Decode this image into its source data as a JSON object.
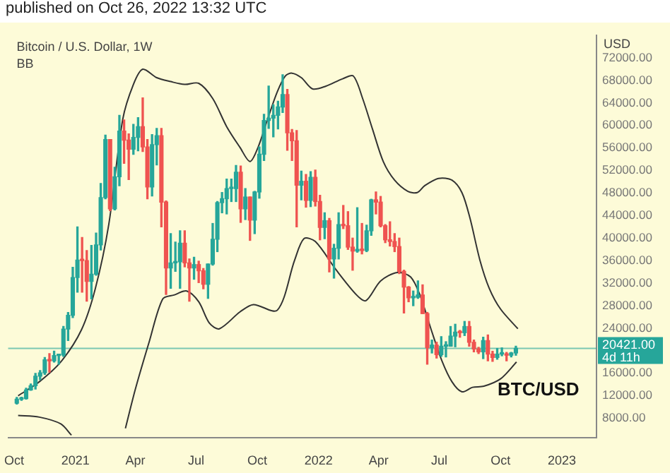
{
  "chart_data": {
    "type": "candlestick",
    "title": "Bitcoin / U.S. Dollar, 1W",
    "ylabel": "USD",
    "annotations": [
      "published on Oct 26, 2022 13:32 UTC",
      "BB",
      "BTC/USD",
      "4d 11h"
    ],
    "xlim": [
      "2020-09-22",
      "2023-02-22"
    ],
    "xticks": [
      {
        "value": "2020-10-01",
        "label": "Oct"
      },
      {
        "value": "2021-01-01",
        "label": "2021"
      },
      {
        "value": "2021-04-01",
        "label": "Apr"
      },
      {
        "value": "2021-07-01",
        "label": "Jul"
      },
      {
        "value": "2021-10-01",
        "label": "Oct"
      },
      {
        "value": "2022-01-01",
        "label": "2022"
      },
      {
        "value": "2022-04-01",
        "label": "Apr"
      },
      {
        "value": "2022-07-01",
        "label": "Jul"
      },
      {
        "value": "2022-10-01",
        "label": "Oct"
      },
      {
        "value": "2023-01-01",
        "label": "2023"
      }
    ],
    "ylim": [
      4500,
      76000
    ],
    "yticks": [
      {
        "value": 8000,
        "label": "8000.00"
      },
      {
        "value": 12000,
        "label": "12000.00"
      },
      {
        "value": 16000,
        "label": "16000.00"
      },
      {
        "value": 24000,
        "label": "24000.00"
      },
      {
        "value": 28000,
        "label": "28000.00"
      },
      {
        "value": 32000,
        "label": "32000.00"
      },
      {
        "value": 36000,
        "label": "36000.00"
      },
      {
        "value": 40000,
        "label": "40000.00"
      },
      {
        "value": 44000,
        "label": "44000.00"
      },
      {
        "value": 48000,
        "label": "48000.00"
      },
      {
        "value": 52000,
        "label": "52000.00"
      },
      {
        "value": 56000,
        "label": "56000.00"
      },
      {
        "value": 60000,
        "label": "60000.00"
      },
      {
        "value": 64000,
        "label": "64000.00"
      },
      {
        "value": 68000,
        "label": "68000.00"
      },
      {
        "value": 72000,
        "label": "72000.00"
      }
    ],
    "grid": false,
    "legend": false,
    "ref_lines": [
      {
        "axis": "y",
        "value": 20421,
        "label": "20421.00",
        "color": "#26a69a"
      }
    ],
    "series": [
      {
        "type": "candlestick",
        "x": [
          "2020-10-05",
          "2020-10-12",
          "2020-10-19",
          "2020-10-26",
          "2020-11-02",
          "2020-11-09",
          "2020-11-16",
          "2020-11-23",
          "2020-11-30",
          "2020-12-07",
          "2020-12-14",
          "2020-12-21",
          "2020-12-28",
          "2021-01-04",
          "2021-01-11",
          "2021-01-18",
          "2021-01-25",
          "2021-02-01",
          "2021-02-08",
          "2021-02-15",
          "2021-02-22",
          "2021-03-01",
          "2021-03-08",
          "2021-03-15",
          "2021-03-22",
          "2021-03-29",
          "2021-04-05",
          "2021-04-12",
          "2021-04-19",
          "2021-04-26",
          "2021-05-03",
          "2021-05-10",
          "2021-05-17",
          "2021-05-24",
          "2021-05-31",
          "2021-06-07",
          "2021-06-14",
          "2021-06-21",
          "2021-06-28",
          "2021-07-05",
          "2021-07-12",
          "2021-07-19",
          "2021-07-26",
          "2021-08-02",
          "2021-08-09",
          "2021-08-16",
          "2021-08-23",
          "2021-08-30",
          "2021-09-06",
          "2021-09-13",
          "2021-09-20",
          "2021-09-27",
          "2021-10-04",
          "2021-10-11",
          "2021-10-18",
          "2021-10-25",
          "2021-11-01",
          "2021-11-08",
          "2021-11-15",
          "2021-11-22",
          "2021-11-29",
          "2021-12-06",
          "2021-12-13",
          "2021-12-20",
          "2021-12-27",
          "2022-01-03",
          "2022-01-10",
          "2022-01-17",
          "2022-01-24",
          "2022-01-31",
          "2022-02-07",
          "2022-02-14",
          "2022-02-21",
          "2022-02-28",
          "2022-03-07",
          "2022-03-14",
          "2022-03-21",
          "2022-03-28",
          "2022-04-04",
          "2022-04-11",
          "2022-04-18",
          "2022-04-25",
          "2022-05-02",
          "2022-05-09",
          "2022-05-16",
          "2022-05-23",
          "2022-05-30",
          "2022-06-06",
          "2022-06-13",
          "2022-06-20",
          "2022-06-27",
          "2022-07-04",
          "2022-07-11",
          "2022-07-18",
          "2022-07-25",
          "2022-08-01",
          "2022-08-08",
          "2022-08-15",
          "2022-08-22",
          "2022-08-29",
          "2022-09-05",
          "2022-09-12",
          "2022-09-19",
          "2022-09-26",
          "2022-10-03",
          "2022-10-10",
          "2022-10-17",
          "2022-10-24"
        ],
        "ohlc": [
          [
            10670,
            11720,
            10530,
            11380
          ],
          [
            11380,
            11740,
            11200,
            11500
          ],
          [
            11500,
            13350,
            11400,
            13030
          ],
          [
            13030,
            14100,
            12970,
            13780
          ],
          [
            13780,
            15960,
            13200,
            15480
          ],
          [
            15480,
            16480,
            14850,
            16060
          ],
          [
            16060,
            18800,
            15800,
            18400
          ],
          [
            18400,
            19480,
            16200,
            18200
          ],
          [
            18200,
            19920,
            18000,
            19150
          ],
          [
            19150,
            19400,
            17600,
            19250
          ],
          [
            19250,
            24300,
            19000,
            23840
          ],
          [
            23840,
            26800,
            21800,
            26280
          ],
          [
            26280,
            34800,
            25900,
            33000
          ],
          [
            33000,
            42000,
            30400,
            36100
          ],
          [
            36100,
            40100,
            30400,
            36000
          ],
          [
            36000,
            37800,
            28800,
            32300
          ],
          [
            32300,
            38700,
            29200,
            33600
          ],
          [
            33600,
            40900,
            33400,
            38800
          ],
          [
            38800,
            49700,
            37900,
            47200
          ],
          [
            47200,
            58300,
            47000,
            57500
          ],
          [
            57500,
            57500,
            44900,
            45200
          ],
          [
            45200,
            52600,
            45000,
            50900
          ],
          [
            50900,
            61800,
            49300,
            59000
          ],
          [
            59000,
            61000,
            53300,
            57400
          ],
          [
            57400,
            58500,
            50400,
            55800
          ],
          [
            55800,
            60200,
            54900,
            57900
          ],
          [
            57900,
            61400,
            55500,
            59800
          ],
          [
            59800,
            64900,
            55400,
            56200
          ],
          [
            56200,
            57500,
            47000,
            49100
          ],
          [
            49100,
            58400,
            47500,
            56600
          ],
          [
            56600,
            59500,
            53000,
            58200
          ],
          [
            58200,
            59500,
            42000,
            46400
          ],
          [
            46400,
            46600,
            30000,
            34700
          ],
          [
            34700,
            40800,
            31100,
            35600
          ],
          [
            35600,
            39300,
            34100,
            35800
          ],
          [
            35800,
            41300,
            31100,
            39100
          ],
          [
            39100,
            41300,
            34900,
            35600
          ],
          [
            35600,
            36300,
            28800,
            34700
          ],
          [
            34700,
            36600,
            32700,
            35300
          ],
          [
            35300,
            35900,
            32100,
            34200
          ],
          [
            34200,
            34600,
            31000,
            31800
          ],
          [
            31800,
            35400,
            29300,
            35400
          ],
          [
            35400,
            42600,
            35200,
            39800
          ],
          [
            39800,
            46500,
            37600,
            46300
          ],
          [
            46300,
            48100,
            44500,
            47000
          ],
          [
            47000,
            50500,
            44300,
            48800
          ],
          [
            48800,
            50500,
            46500,
            48800
          ],
          [
            48800,
            52900,
            46500,
            51700
          ],
          [
            51700,
            52800,
            42800,
            45200
          ],
          [
            45200,
            48800,
            43300,
            47300
          ],
          [
            47300,
            47300,
            39600,
            43200
          ],
          [
            43200,
            48300,
            40800,
            48200
          ],
          [
            48200,
            56200,
            47100,
            54900
          ],
          [
            54900,
            62000,
            53800,
            60900
          ],
          [
            60900,
            67000,
            59500,
            61300
          ],
          [
            61300,
            63700,
            58000,
            61800
          ],
          [
            61800,
            64300,
            59400,
            63300
          ],
          [
            63300,
            69000,
            62300,
            65500
          ],
          [
            65500,
            66400,
            55600,
            58700
          ],
          [
            58700,
            59300,
            53800,
            57300
          ],
          [
            57300,
            59100,
            42000,
            49400
          ],
          [
            49400,
            51900,
            46800,
            50100
          ],
          [
            50100,
            51300,
            45500,
            46700
          ],
          [
            46700,
            51800,
            45600,
            50800
          ],
          [
            50800,
            52100,
            45700,
            46500
          ],
          [
            46500,
            47600,
            39700,
            41900
          ],
          [
            41900,
            44500,
            39900,
            43100
          ],
          [
            43100,
            43500,
            34000,
            36300
          ],
          [
            36300,
            38900,
            32900,
            38200
          ],
          [
            38200,
            44500,
            36300,
            42400
          ],
          [
            42400,
            45800,
            41700,
            42200
          ],
          [
            42200,
            44700,
            38000,
            38400
          ],
          [
            38400,
            40000,
            34300,
            37700
          ],
          [
            37700,
            45400,
            37500,
            38000
          ],
          [
            38000,
            42600,
            37200,
            37800
          ],
          [
            37800,
            42300,
            37600,
            41300
          ],
          [
            41300,
            46900,
            40500,
            46800
          ],
          [
            46800,
            48200,
            44300,
            46400
          ],
          [
            46400,
            47400,
            42000,
            42200
          ],
          [
            42200,
            42400,
            39200,
            39700
          ],
          [
            39700,
            42900,
            38600,
            39400
          ],
          [
            39400,
            40800,
            37600,
            38500
          ],
          [
            38500,
            40000,
            33700,
            34100
          ],
          [
            34100,
            34300,
            26700,
            31300
          ],
          [
            31300,
            31400,
            28700,
            29400
          ],
          [
            29400,
            30600,
            28000,
            29500
          ],
          [
            29500,
            32400,
            29300,
            29900
          ],
          [
            29900,
            31700,
            26600,
            26600
          ],
          [
            26600,
            26800,
            17600,
            20550
          ],
          [
            20550,
            21900,
            19600,
            21000
          ],
          [
            21000,
            21500,
            18700,
            19300
          ],
          [
            19300,
            22500,
            19000,
            20800
          ],
          [
            20800,
            21600,
            18900,
            20800
          ],
          [
            20800,
            24300,
            20800,
            22600
          ],
          [
            22600,
            24700,
            20700,
            23300
          ],
          [
            23300,
            23600,
            22400,
            23200
          ],
          [
            23200,
            25200,
            22700,
            24300
          ],
          [
            24300,
            25200,
            20800,
            21500
          ],
          [
            21500,
            21900,
            19800,
            20300
          ],
          [
            20300,
            20600,
            19500,
            19800
          ],
          [
            19800,
            22400,
            18600,
            21800
          ],
          [
            21800,
            22800,
            18200,
            19400
          ],
          [
            19400,
            19900,
            18100,
            18800
          ],
          [
            18800,
            20400,
            18500,
            19400
          ],
          [
            19400,
            20500,
            19100,
            19400
          ],
          [
            19400,
            19700,
            18200,
            19200
          ],
          [
            19200,
            19700,
            18900,
            19600
          ],
          [
            19600,
            20800,
            19200,
            20421
          ]
        ],
        "colors": [
          "#26a69a",
          "#26a69a",
          "#26a69a",
          "#26a69a",
          "#26a69a",
          "#26a69a",
          "#26a69a",
          "#ef5350",
          "#26a69a",
          "#26a69a",
          "#26a69a",
          "#26a69a",
          "#26a69a",
          "#26a69a",
          "#ef5350",
          "#ef5350",
          "#26a69a",
          "#26a69a",
          "#26a69a",
          "#26a69a",
          "#ef5350",
          "#26a69a",
          "#26a69a",
          "#ef5350",
          "#ef5350",
          "#26a69a",
          "#26a69a",
          "#ef5350",
          "#ef5350",
          "#26a69a",
          "#26a69a",
          "#ef5350",
          "#ef5350",
          "#26a69a",
          "#26a69a",
          "#26a69a",
          "#ef5350",
          "#ef5350",
          "#26a69a",
          "#ef5350",
          "#ef5350",
          "#26a69a",
          "#26a69a",
          "#26a69a",
          "#26a69a",
          "#26a69a",
          "#26a69a",
          "#26a69a",
          "#ef5350",
          "#26a69a",
          "#ef5350",
          "#26a69a",
          "#26a69a",
          "#26a69a",
          "#26a69a",
          "#26a69a",
          "#26a69a",
          "#26a69a",
          "#ef5350",
          "#ef5350",
          "#ef5350",
          "#26a69a",
          "#ef5350",
          "#26a69a",
          "#ef5350",
          "#ef5350",
          "#26a69a",
          "#ef5350",
          "#26a69a",
          "#26a69a",
          "#ef5350",
          "#ef5350",
          "#ef5350",
          "#26a69a",
          "#ef5350",
          "#26a69a",
          "#26a69a",
          "#ef5350",
          "#ef5350",
          "#ef5350",
          "#ef5350",
          "#ef5350",
          "#ef5350",
          "#ef5350",
          "#ef5350",
          "#26a69a",
          "#26a69a",
          "#ef5350",
          "#ef5350",
          "#26a69a",
          "#ef5350",
          "#26a69a",
          "#26a69a",
          "#26a69a",
          "#26a69a",
          "#ef5350",
          "#26a69a",
          "#ef5350",
          "#ef5350",
          "#ef5350",
          "#26a69a",
          "#ef5350",
          "#ef5350",
          "#26a69a",
          "#26a69a",
          "#ef5350",
          "#26a69a",
          "#26a69a"
        ]
      },
      {
        "type": "line",
        "color": "#333333",
        "x": [
          "2020-10-07",
          "2020-11-08",
          "2020-12-10",
          "2021-01-10",
          "2021-01-31",
          "2021-02-20",
          "2021-03-13",
          "2021-03-29",
          "2021-04-12",
          "2021-05-03",
          "2021-05-24",
          "2021-06-14",
          "2021-07-05",
          "2021-07-26",
          "2021-08-16",
          "2021-09-05",
          "2021-09-20",
          "2021-10-02",
          "2021-10-16",
          "2021-10-31",
          "2021-11-12",
          "2021-11-22",
          "2021-12-06",
          "2021-12-23",
          "2022-01-12",
          "2022-02-06",
          "2022-02-22",
          "2022-03-08",
          "2022-03-23",
          "2022-04-08",
          "2022-04-25",
          "2022-05-15",
          "2022-05-29",
          "2022-06-09",
          "2022-06-30",
          "2022-07-20",
          "2022-08-04",
          "2022-08-16",
          "2022-08-31",
          "2022-09-14",
          "2022-10-01",
          "2022-10-27"
        ],
        "values": [
          12000,
          14500,
          18000,
          23700,
          31100,
          42400,
          61100,
          67300,
          70000,
          68500,
          67800,
          67300,
          67500,
          64800,
          59800,
          56100,
          53600,
          56100,
          61000,
          66000,
          68800,
          69300,
          68500,
          66500,
          67000,
          68300,
          68800,
          64800,
          59300,
          53600,
          50300,
          48300,
          48100,
          49300,
          50600,
          50300,
          48100,
          43600,
          36100,
          31100,
          27400,
          23900
        ]
      },
      {
        "type": "line",
        "color": "#333333",
        "x": [
          "2020-10-07",
          "2020-11-08",
          "2020-12-10",
          "2020-12-26",
          "2021-02-01",
          "2021-03-17",
          "2021-04-01",
          "2021-04-22",
          "2021-05-12",
          "2021-05-29",
          "2021-06-17",
          "2021-07-05",
          "2021-07-21",
          "2021-08-05",
          "2021-09-05",
          "2021-09-25",
          "2021-10-31",
          "2021-11-26",
          "2021-12-10",
          "2021-12-27",
          "2022-01-27",
          "2022-02-27",
          "2022-03-13",
          "2022-04-04",
          "2022-04-29",
          "2022-05-19",
          "2022-06-02",
          "2022-06-19",
          "2022-07-05",
          "2022-07-20",
          "2022-08-04",
          "2022-08-20",
          "2022-09-06",
          "2022-10-01",
          "2022-10-25"
        ],
        "values": [
          8500,
          8200,
          7000,
          5000,
          null,
          6200,
          13200,
          21700,
          29200,
          29900,
          30600,
          28700,
          24900,
          23900,
          26900,
          28200,
          27200,
          36100,
          39900,
          39400,
          34400,
          29900,
          28900,
          32400,
          33900,
          33100,
          29900,
          23700,
          18200,
          14500,
          12700,
          13500,
          13700,
          15000,
          18000
        ]
      }
    ]
  }
}
